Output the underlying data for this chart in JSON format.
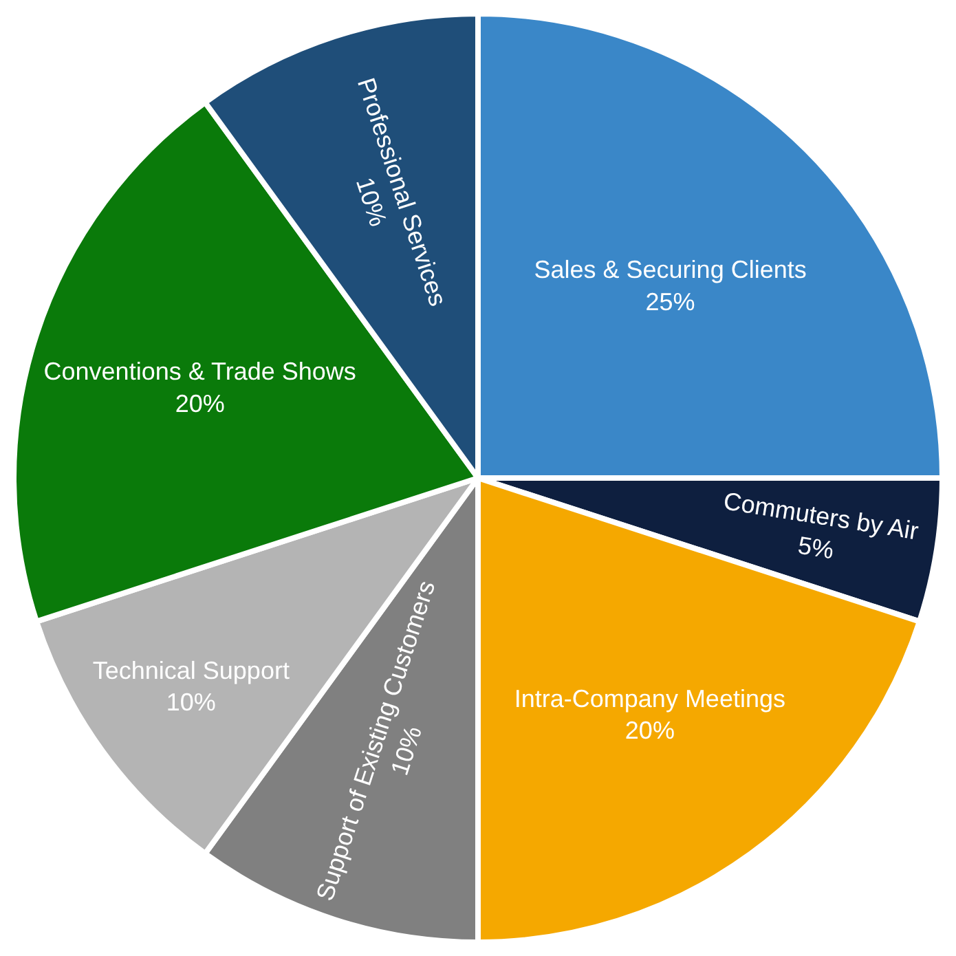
{
  "chart_data": {
    "type": "pie",
    "categories": [
      "Sales & Securing Clients",
      "Commuters by Air",
      "Intra-Company Meetings",
      "Support of Existing Customers",
      "Technical Support",
      "Conventions & Trade Shows",
      "Professional Services"
    ],
    "values": [
      25,
      5,
      20,
      10,
      10,
      20,
      10
    ],
    "value_labels": [
      "25%",
      "5%",
      "20%",
      "10%",
      "10%",
      "20%",
      "10%"
    ],
    "colors": [
      "#3a87c8",
      "#0e1f3f",
      "#f5a800",
      "#808080",
      "#b4b4b4",
      "#0a7a0a",
      "#1f4e79"
    ],
    "legend": false
  }
}
